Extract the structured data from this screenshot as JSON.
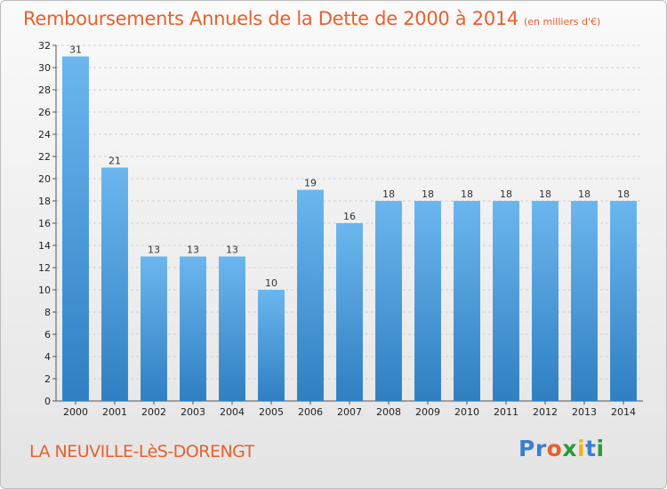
{
  "header": {
    "title": "Remboursements Annuels de la Dette de 2000 à 2014",
    "subtitle": "(en milliers d'€)"
  },
  "footer": {
    "commune": "LA NEUVILLE-LèS-DORENGT"
  },
  "logo": {
    "text": "Proxiti",
    "letters": [
      "P",
      "r",
      "o",
      "x",
      "i",
      "t",
      "i"
    ],
    "colors": [
      "#3a7fcf",
      "#3a7fcf",
      "#e8602c",
      "#2a9b3a",
      "#f2b21a",
      "#3a7fcf",
      "#2a9b3a"
    ]
  },
  "colors": {
    "bar_top": "#6bb6ee",
    "bar_bottom": "#2f7fc2",
    "accent": "#e8602c"
  },
  "chart_data": {
    "type": "bar",
    "title": "Remboursements Annuels de la Dette de 2000 à 2014",
    "xlabel": "",
    "ylabel": "",
    "categories": [
      "2000",
      "2001",
      "2002",
      "2003",
      "2004",
      "2005",
      "2006",
      "2007",
      "2008",
      "2009",
      "2010",
      "2011",
      "2012",
      "2013",
      "2014"
    ],
    "values": [
      31,
      21,
      13,
      13,
      13,
      10,
      19,
      16,
      18,
      18,
      18,
      18,
      18,
      18,
      18
    ],
    "ylim": [
      0,
      32
    ],
    "yticks": [
      0,
      2,
      4,
      6,
      8,
      10,
      12,
      14,
      16,
      18,
      20,
      22,
      24,
      26,
      28,
      30,
      32
    ],
    "grid": true
  }
}
